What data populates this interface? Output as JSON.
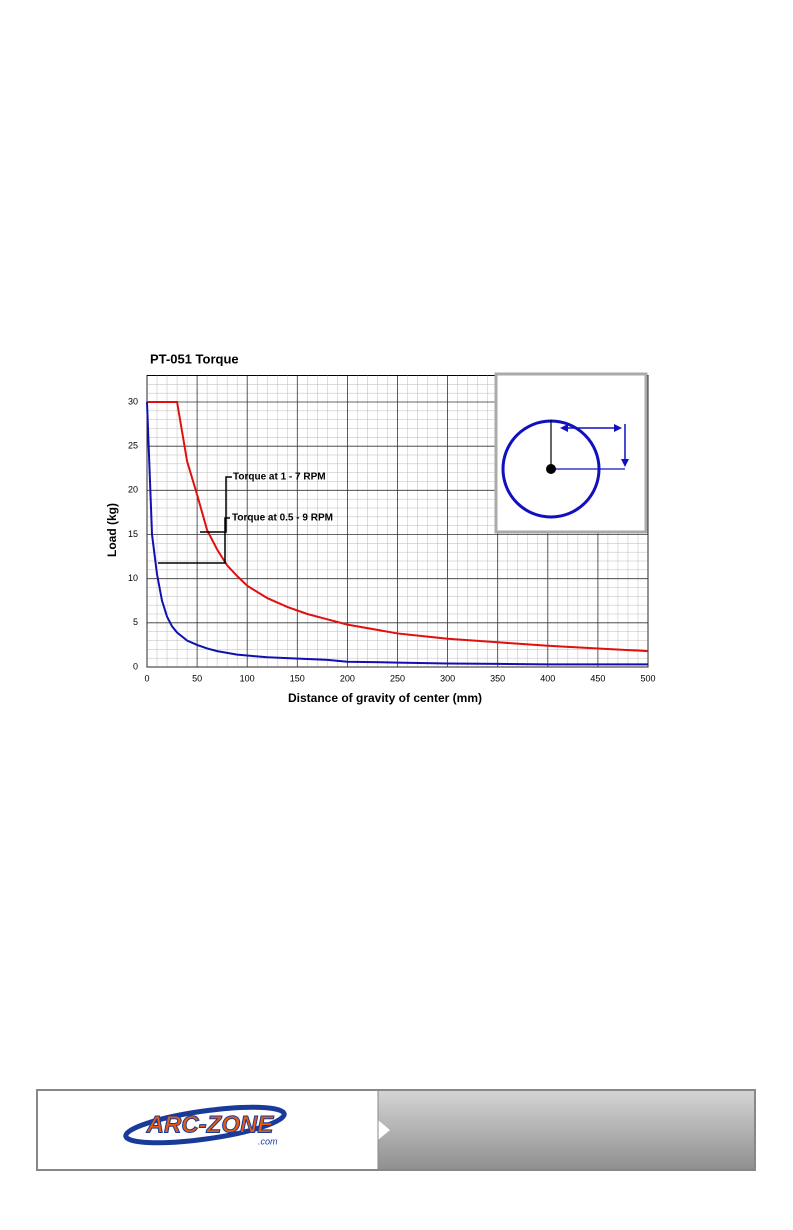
{
  "chart_data": {
    "type": "line",
    "title": "PT-051 Torque",
    "x_label": "Distance of gravity of center (mm)",
    "y_label": "Load (kg)",
    "x": [
      0,
      5,
      10,
      15,
      20,
      25,
      30,
      40,
      50,
      60,
      70,
      80,
      90,
      100,
      120,
      140,
      160,
      180,
      200,
      250,
      300,
      350,
      400,
      450,
      500
    ],
    "series": [
      {
        "color": "#e01010",
        "values": [
          30,
          30,
          30,
          30,
          30,
          30,
          30,
          23.3,
          19.5,
          15.5,
          13.3,
          11.5,
          10.3,
          9.2,
          7.8,
          6.8,
          6,
          5.4,
          4.8,
          3.8,
          3.2,
          2.8,
          2.4,
          2.1,
          1.8
        ]
      },
      {
        "color": "#1010b0",
        "values": [
          30,
          15,
          10.5,
          7.5,
          5.7,
          4.6,
          3.9,
          3,
          2.5,
          2.1,
          1.8,
          1.6,
          1.4,
          1.3,
          1.1,
          1,
          0.9,
          0.8,
          0.6,
          0.5,
          0.4,
          0.35,
          0.3,
          0.3,
          0.3
        ]
      }
    ],
    "annotations": [
      "Torque at 1 - 7 RPM",
      "Torque at 0.5 - 9 RPM"
    ],
    "xlim": [
      0,
      500
    ],
    "xticks": [
      0,
      50,
      100,
      150,
      200,
      250,
      300,
      350,
      400,
      450,
      500
    ],
    "ylim": [
      0,
      33
    ],
    "yticks": [
      0,
      5,
      10,
      15,
      20,
      25,
      30
    ],
    "grid": true,
    "minor_grid": true
  },
  "footer": {
    "logo": "ARC-ZONE",
    "logo_suffix": ".com"
  }
}
